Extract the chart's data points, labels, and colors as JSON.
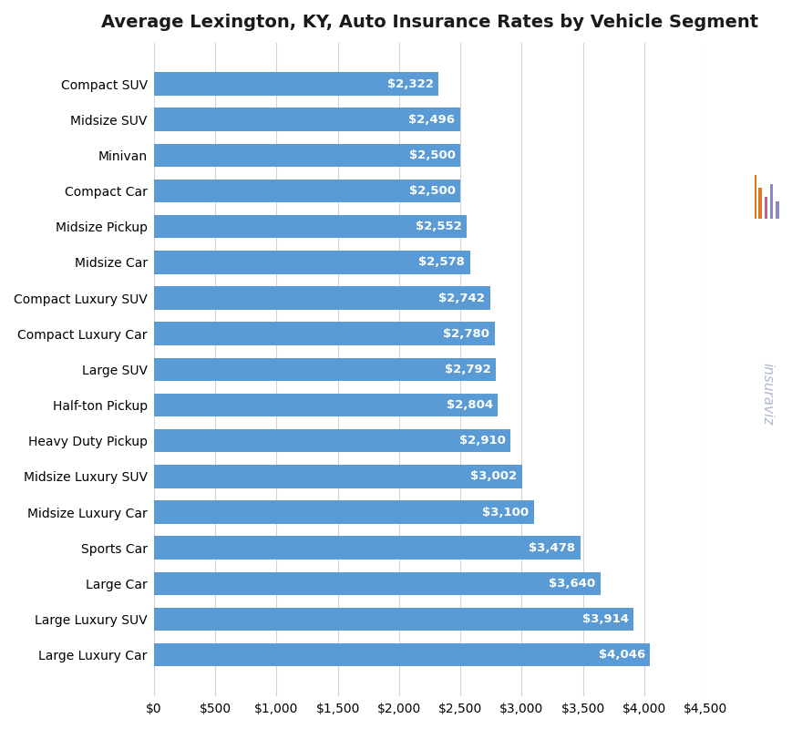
{
  "title": "Average Lexington, KY, Auto Insurance Rates by Vehicle Segment",
  "categories": [
    "Compact SUV",
    "Midsize SUV",
    "Minivan",
    "Compact Car",
    "Midsize Pickup",
    "Midsize Car",
    "Compact Luxury SUV",
    "Compact Luxury Car",
    "Large SUV",
    "Half-ton Pickup",
    "Heavy Duty Pickup",
    "Midsize Luxury SUV",
    "Midsize Luxury Car",
    "Sports Car",
    "Large Car",
    "Large Luxury SUV",
    "Large Luxury Car"
  ],
  "values": [
    2322,
    2496,
    2500,
    2500,
    2552,
    2578,
    2742,
    2780,
    2792,
    2804,
    2910,
    3002,
    3100,
    3478,
    3640,
    3914,
    4046
  ],
  "bar_color": "#5b9bd5",
  "label_color": "#ffffff",
  "title_fontsize": 14,
  "label_fontsize": 9.5,
  "tick_fontsize": 10,
  "ytick_fontsize": 10,
  "xlim": [
    0,
    4500
  ],
  "xticks": [
    0,
    500,
    1000,
    1500,
    2000,
    2500,
    3000,
    3500,
    4000,
    4500
  ],
  "xtick_labels": [
    "$0",
    "$500",
    "$1,000",
    "$1,500",
    "$2,000",
    "$2,500",
    "$3,000",
    "$3,500",
    "$4,000",
    "$4,500"
  ],
  "background_color": "#ffffff",
  "grid_color": "#d3d3d3",
  "watermark_text": "insuraviz",
  "watermark_color": "#b0b8d0",
  "watermark_fontsize": 11,
  "logo_color1": "#e8a050",
  "logo_color2": "#d070a0",
  "logo_color3": "#8090d0"
}
